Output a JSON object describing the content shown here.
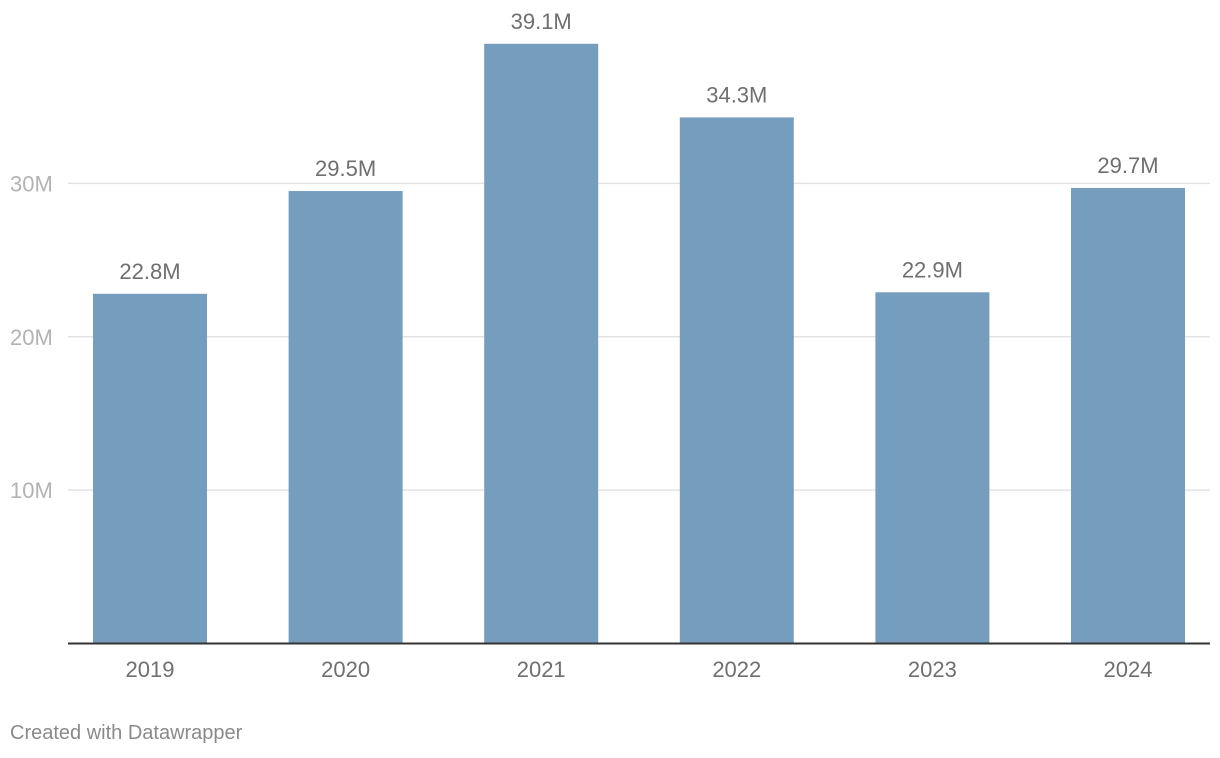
{
  "chart_data": {
    "type": "bar",
    "categories": [
      "2019",
      "2020",
      "2021",
      "2022",
      "2023",
      "2024"
    ],
    "values": [
      22.8,
      29.5,
      39.1,
      34.3,
      22.9,
      29.7
    ],
    "value_labels": [
      "22.8M",
      "29.5M",
      "39.1M",
      "34.3M",
      "22.9M",
      "29.7M"
    ],
    "unit": "M",
    "ylim": [
      0,
      40
    ],
    "y_ticks": [
      10,
      20,
      30
    ],
    "y_tick_labels": [
      "10M",
      "20M",
      "30M"
    ],
    "grid": true,
    "legend": "none",
    "title": "",
    "xlabel": "",
    "ylabel": "",
    "colors": {
      "bar": "#759dbe",
      "grid": "#e3e3e3",
      "axis": "#333333",
      "tick_text": "#b3b3b3",
      "label_text": "#6f6f6f"
    }
  },
  "footer": {
    "credit": "Created with Datawrapper"
  }
}
